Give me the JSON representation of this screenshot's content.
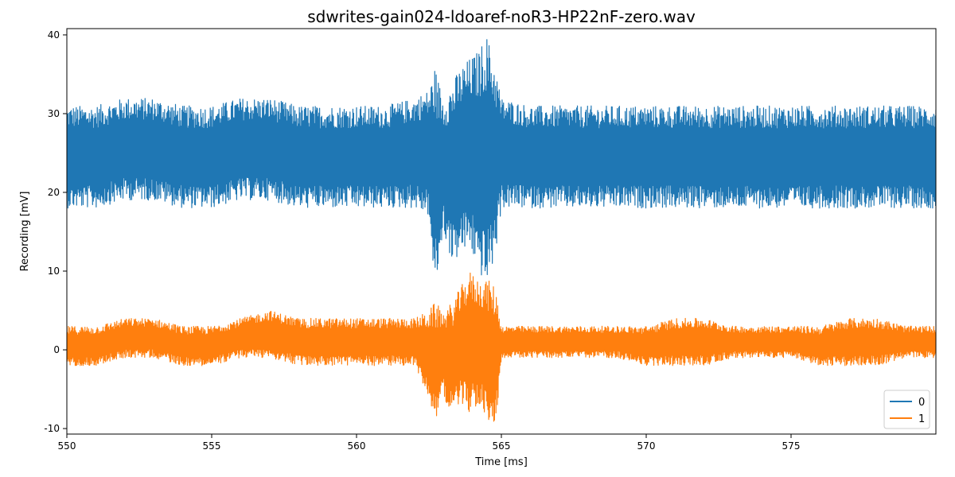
{
  "chart_data": {
    "type": "line",
    "title": "sdwrites-gain024-ldoaref-noR3-HP22nF-zero.wav",
    "xlabel": "Time [ms]",
    "ylabel": "Recording [mV]",
    "xlim": [
      550,
      580
    ],
    "ylim": [
      -10.7,
      40.8
    ],
    "xticks": [
      550,
      555,
      560,
      565,
      570,
      575
    ],
    "yticks": [
      -10,
      0,
      10,
      20,
      30,
      40
    ],
    "grid": false,
    "legend": {
      "placement": "lower-right",
      "entries": [
        "0",
        "1"
      ]
    },
    "series": [
      {
        "name": "0",
        "color": "#1f77b4",
        "envelope": {
          "time_ms": [
            550,
            551,
            552,
            553,
            554,
            555,
            556,
            557,
            558,
            559,
            560,
            561,
            562,
            562.5,
            562.7,
            563.0,
            563.3,
            563.6,
            563.9,
            564.2,
            564.5,
            564.8,
            565.0,
            566,
            567,
            568,
            569,
            570,
            571,
            572,
            573,
            574,
            575,
            576,
            577,
            578,
            579,
            580
          ],
          "max_mV": [
            31,
            31,
            32,
            32,
            31,
            31,
            32,
            32,
            31,
            31,
            31,
            31,
            32,
            33,
            36,
            32,
            34,
            36,
            37,
            38,
            40,
            36,
            32,
            31,
            31,
            31,
            31,
            31,
            31,
            31,
            31,
            31,
            31,
            31,
            31,
            31,
            31,
            31
          ],
          "min_mV": [
            18,
            18,
            19,
            19,
            18,
            18,
            19,
            19,
            18,
            18,
            18,
            18,
            18,
            17,
            7,
            15,
            11,
            12,
            13,
            10,
            8,
            12,
            18,
            18,
            18,
            18,
            18,
            18,
            18,
            18,
            18,
            18,
            18,
            18,
            18,
            18,
            18,
            18
          ]
        }
      },
      {
        "name": "1",
        "color": "#ff7f0e",
        "envelope": {
          "time_ms": [
            550,
            551,
            552,
            553,
            554,
            555,
            556,
            557,
            558,
            559,
            560,
            561,
            562,
            562.5,
            562.7,
            563.0,
            563.3,
            563.6,
            563.9,
            564.2,
            564.5,
            564.8,
            565.0,
            566,
            567,
            568,
            569,
            570,
            571,
            572,
            573,
            574,
            575,
            576,
            577,
            578,
            579,
            580
          ],
          "max_mV": [
            3,
            3,
            4,
            4,
            3,
            3,
            4,
            5,
            4,
            4,
            4,
            4,
            4,
            5,
            6,
            5,
            6,
            8,
            10,
            9,
            9,
            8,
            3,
            3,
            3,
            3,
            3,
            3,
            4,
            4,
            3,
            3,
            3,
            3,
            4,
            4,
            3,
            3
          ],
          "min_mV": [
            -2,
            -2,
            -1,
            -1,
            -2,
            -2,
            -1,
            -1,
            -2,
            -2,
            -2,
            -2,
            -2,
            -6,
            -9,
            -6,
            -8,
            -7,
            -8,
            -7,
            -9,
            -10,
            -1,
            -1,
            -1,
            -1,
            -1,
            -2,
            -2,
            -2,
            -1,
            -1,
            -1,
            -2,
            -2,
            -2,
            -1,
            -1
          ]
        }
      }
    ]
  }
}
